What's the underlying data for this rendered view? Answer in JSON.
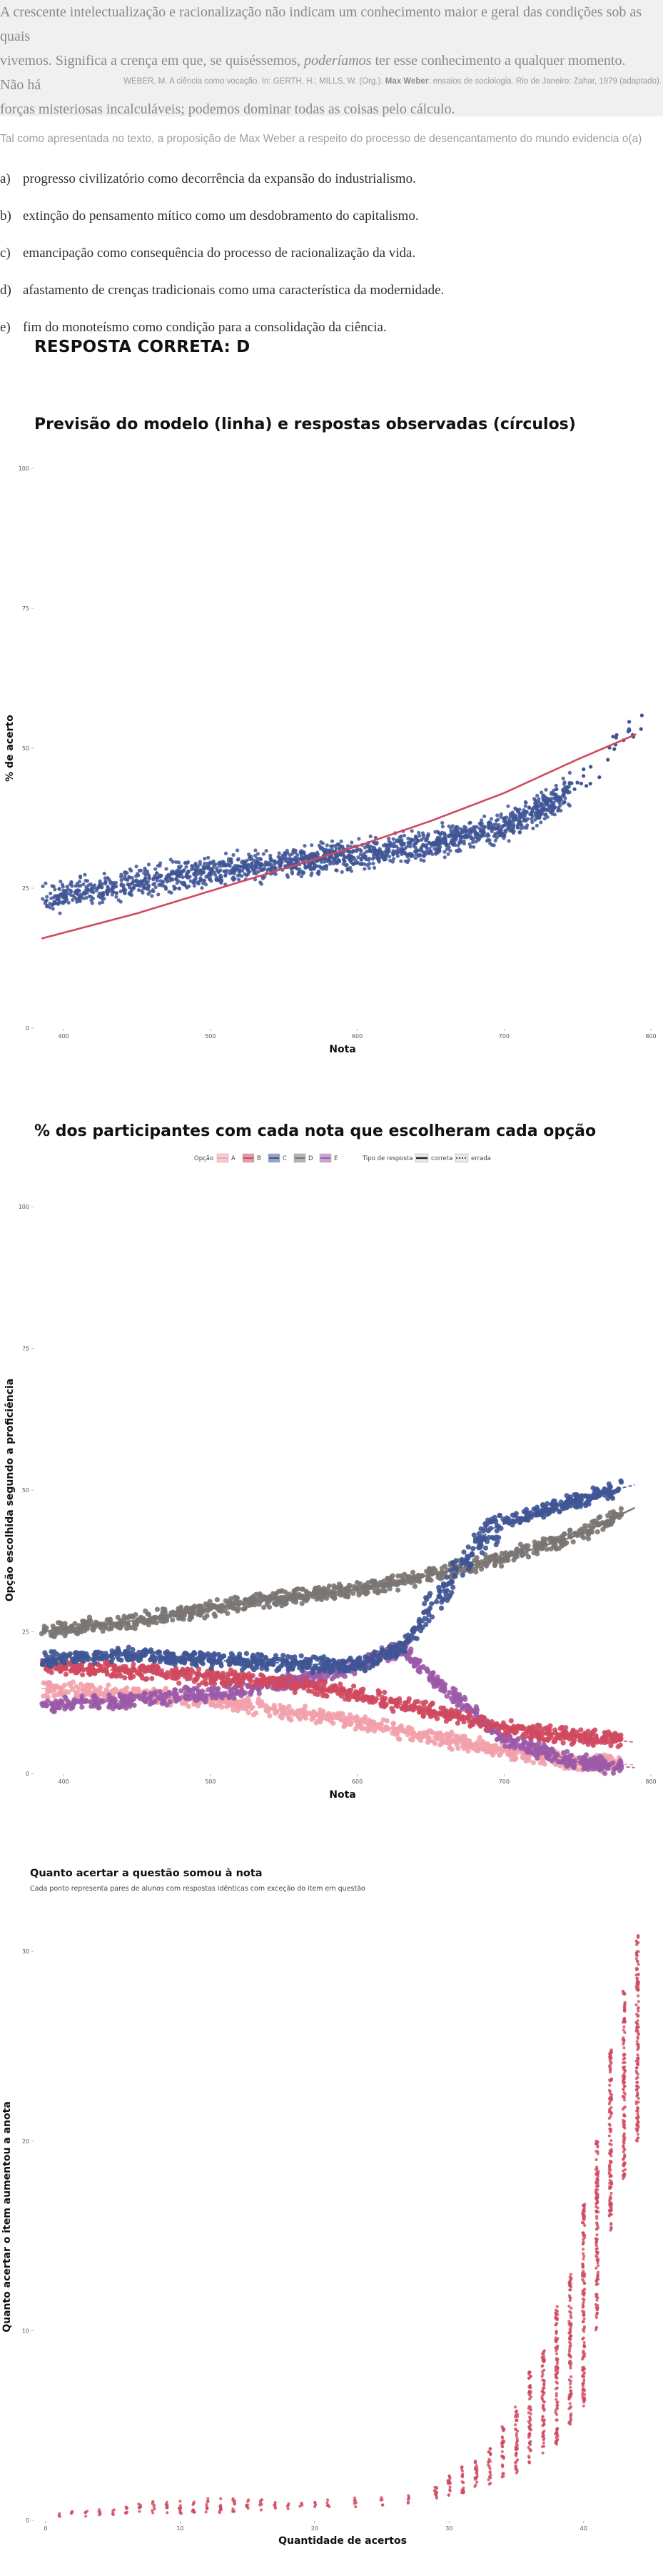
{
  "question": {
    "quote_line1": "A crescente intelectualização e racionalização não indicam um conhecimento maior e geral das condições sob as quais",
    "quote_line2_pre": "vivemos. Significa a crença em que, se quiséssemos, ",
    "quote_line2_em": "poderíamos",
    "quote_line2_post": " ter esse conhecimento a qualquer momento. Não há",
    "quote_line3": "forças misteriosas incalculáveis; podemos dominar todas as coisas pelo cálculo.",
    "ref_pre": "WEBER, M. A ciência como vocação. In: GERTH, H.; MILLS, W. (Org.). ",
    "ref_bold": "Max Weber",
    "ref_post": ": ensaios de sociologia. Rio de Janeiro: Zahar, 1979 (adaptado).",
    "stem": "Tal como apresentada no texto, a proposição de Max Weber a respeito do processo de desencantamento do mundo evidencia o(a)",
    "options": [
      {
        "letter": "a)",
        "text": "progresso civilizatório como decorrência da expansão do industrialismo."
      },
      {
        "letter": "b)",
        "text": "extinção do pensamento mítico como um desdobramento do capitalismo."
      },
      {
        "letter": "c)",
        "text": "emancipação como consequência do processo de racionalização da vida."
      },
      {
        "letter": "d)",
        "text": "afastamento de crenças tradicionais como uma característica da modernidade."
      },
      {
        "letter": "e)",
        "text": "fim do monoteísmo como condição para a consolidação da ciência."
      }
    ],
    "answer": "RESPOSTA CORRETA: D"
  },
  "chart_data": [
    {
      "type": "scatter",
      "title": "Previsão do modelo (linha) e respostas observadas (círculos)",
      "xlabel": "Nota",
      "ylabel": "% de acerto",
      "xlim": [
        380,
        800
      ],
      "ylim": [
        0,
        100
      ],
      "xticks": [
        "400",
        "500",
        "600",
        "700",
        "800"
      ],
      "yticks": [
        "0",
        "25",
        "50",
        "75",
        "100"
      ],
      "point_color": "#3f5595",
      "line_color": "#d0495f",
      "observed_trend": {
        "x": [
          385,
          450,
          500,
          550,
          600,
          650,
          700,
          730,
          760,
          790
        ],
        "y": [
          23,
          26,
          28,
          29.5,
          31,
          33,
          36,
          40,
          45,
          55
        ]
      },
      "model_curve": {
        "x": [
          385,
          450,
          500,
          550,
          600,
          650,
          700,
          750,
          790
        ],
        "y": [
          16,
          20.5,
          24.5,
          28.5,
          32.5,
          37,
          42,
          48,
          52.5
        ]
      },
      "grid": false
    },
    {
      "type": "scatter",
      "title": "% dos participantes com cada nota que escolheram cada opção",
      "xlabel": "Nota",
      "ylabel": "Opção escolhida segundo a proficiência",
      "xlim": [
        380,
        800
      ],
      "ylim": [
        0,
        100
      ],
      "xticks": [
        "400",
        "500",
        "600",
        "700",
        "800"
      ],
      "yticks": [
        "0",
        "25",
        "50",
        "75",
        "100"
      ],
      "legend": {
        "option_title": "Opção",
        "options": [
          "A",
          "B",
          "C",
          "D",
          "E"
        ],
        "type_title": "Tipo de resposta",
        "types": [
          "correta",
          "errada"
        ],
        "placement": "top"
      },
      "series": [
        {
          "name": "A",
          "color": "#f2a1ab",
          "x": [
            385,
            450,
            500,
            550,
            600,
            650,
            700,
            750,
            790
          ],
          "y": [
            15,
            14,
            13,
            11,
            9,
            6.5,
            4,
            2,
            1.5
          ]
        },
        {
          "name": "B",
          "color": "#d0495f",
          "x": [
            385,
            450,
            500,
            550,
            600,
            650,
            700,
            750,
            790
          ],
          "y": [
            19,
            18,
            17,
            16,
            14,
            11,
            8,
            6.5,
            5.5
          ]
        },
        {
          "name": "C",
          "color": "#3f5595",
          "x": [
            385,
            450,
            500,
            550,
            600,
            630,
            660,
            690,
            720,
            760,
            790
          ],
          "y": [
            20,
            21,
            20,
            19.5,
            19,
            22,
            33,
            43,
            46,
            49,
            51
          ]
        },
        {
          "name": "D",
          "color": "#7a7573",
          "x": [
            385,
            450,
            500,
            550,
            600,
            650,
            700,
            750,
            790
          ],
          "y": [
            25,
            27,
            29,
            31,
            32.5,
            35,
            38,
            42,
            47
          ]
        },
        {
          "name": "E",
          "color": "#9b5aa8",
          "x": [
            385,
            450,
            500,
            550,
            600,
            630,
            660,
            700,
            750,
            790
          ],
          "y": [
            12,
            13,
            14,
            16,
            19,
            22,
            15,
            6,
            2,
            1
          ]
        }
      ],
      "grid": false
    },
    {
      "type": "scatter",
      "title": "Quanto acertar a questão somou à nota",
      "subtitle": "Cada ponto representa pares de alunos com respostas idênticas com exceção do item em questão",
      "xlabel": "Quantidade de acertos",
      "ylabel": "Quanto acertar o item aumentou a anota",
      "xlim": [
        0,
        45
      ],
      "ylim": [
        0,
        32
      ],
      "xticks": [
        "0",
        "10",
        "20",
        "30",
        "40"
      ],
      "yticks": [
        "0",
        "10",
        "20",
        "30"
      ],
      "point_color": "#d0495f",
      "columns": [
        {
          "x": 1,
          "min": 0.2,
          "max": 0.4
        },
        {
          "x": 2,
          "min": 0.2,
          "max": 0.5
        },
        {
          "x": 3,
          "min": 0.2,
          "max": 0.5
        },
        {
          "x": 4,
          "min": 0.2,
          "max": 0.6
        },
        {
          "x": 5,
          "min": 0.3,
          "max": 0.7
        },
        {
          "x": 6,
          "min": 0.3,
          "max": 0.8
        },
        {
          "x": 7,
          "min": 0.3,
          "max": 0.9
        },
        {
          "x": 8,
          "min": 0.3,
          "max": 1.0
        },
        {
          "x": 9,
          "min": 0.3,
          "max": 1.0
        },
        {
          "x": 10,
          "min": 0.3,
          "max": 1.1
        },
        {
          "x": 11,
          "min": 0.4,
          "max": 1.1
        },
        {
          "x": 12,
          "min": 0.4,
          "max": 1.2
        },
        {
          "x": 13,
          "min": 0.4,
          "max": 1.2
        },
        {
          "x": 14,
          "min": 0.4,
          "max": 1.2
        },
        {
          "x": 15,
          "min": 0.5,
          "max": 1.1
        },
        {
          "x": 16,
          "min": 0.5,
          "max": 1.1
        },
        {
          "x": 17,
          "min": 0.6,
          "max": 1.0
        },
        {
          "x": 18,
          "min": 0.6,
          "max": 0.9
        },
        {
          "x": 19,
          "min": 0.6,
          "max": 0.9
        },
        {
          "x": 20,
          "min": 0.7,
          "max": 1.0
        },
        {
          "x": 21,
          "min": 0.7,
          "max": 1.1
        },
        {
          "x": 23,
          "min": 0.7,
          "max": 1.2
        },
        {
          "x": 25,
          "min": 0.8,
          "max": 1.2
        },
        {
          "x": 27,
          "min": 0.9,
          "max": 1.4
        },
        {
          "x": 29,
          "min": 1.0,
          "max": 2.0
        },
        {
          "x": 30,
          "min": 1.2,
          "max": 2.6
        },
        {
          "x": 31,
          "min": 1.4,
          "max": 2.9
        },
        {
          "x": 32,
          "min": 1.6,
          "max": 3.2
        },
        {
          "x": 33,
          "min": 1.9,
          "max": 3.8
        },
        {
          "x": 34,
          "min": 2.2,
          "max": 5.0
        },
        {
          "x": 35,
          "min": 2.5,
          "max": 6.0
        },
        {
          "x": 36,
          "min": 3.0,
          "max": 8.0
        },
        {
          "x": 37,
          "min": 3.5,
          "max": 9.0
        },
        {
          "x": 38,
          "min": 4.0,
          "max": 11.5
        },
        {
          "x": 39,
          "min": 5.0,
          "max": 13.0
        },
        {
          "x": 40,
          "min": 6.0,
          "max": 17.0
        },
        {
          "x": 41,
          "min": 10.0,
          "max": 20.0
        },
        {
          "x": 42,
          "min": 15.0,
          "max": 25.0
        },
        {
          "x": 43,
          "min": 18.0,
          "max": 28.0
        },
        {
          "x": 44,
          "min": 20.0,
          "max": 31.0
        }
      ],
      "grid": false
    }
  ]
}
